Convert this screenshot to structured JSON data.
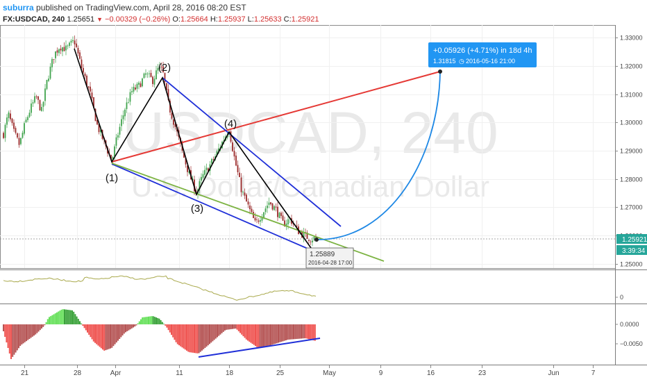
{
  "header": {
    "author": "suburra",
    "published": "published on TradingView.com, April 28, 2016 08:20 EST",
    "symbol": "FX:USDCAD, 240",
    "last": "1.25651",
    "change": "−0.00329 (−0.26%)",
    "o_label": "O:",
    "o": "1.25664",
    "h_label": "H:",
    "h": "1.25937",
    "l_label": "L:",
    "l": "1.25633",
    "c_label": "C:",
    "c": "1.25921"
  },
  "watermark": {
    "line1": "USDCAD, 240",
    "line2": "U.S. Dollar/Canadian Dollar"
  },
  "colors": {
    "up": "#3fa34d",
    "down": "#9b2a2a",
    "red_line": "#e53935",
    "blue_line": "#1f2fd8",
    "green_line": "#7cb342",
    "arc": "#1e88e5",
    "price_tag": "#26a69a",
    "osc": "#a8a84a",
    "hist_pos": "#66e05a",
    "hist_neg": "#ef5350"
  },
  "chart_data": {
    "type": "candlestick",
    "y_ticks": [
      "1.33000",
      "1.32000",
      "1.31000",
      "1.30000",
      "1.29000",
      "1.28000",
      "1.27000",
      "1.26000",
      "1.25000"
    ],
    "ylim": [
      1.2485,
      1.3345
    ],
    "x_ticks": [
      "21",
      "28",
      "Apr",
      "11",
      "18",
      "25",
      "May",
      "9",
      "16",
      "23",
      "Jun",
      "7"
    ],
    "current_price": "1.25921",
    "countdown": "3:39:34",
    "waves": [
      {
        "label": "(1)",
        "time": "2016-03-31 00:00",
        "price": 1.2862
      },
      {
        "label": "(2)",
        "time": "2016-04-08 12:00",
        "price": 1.3185
      },
      {
        "label": "(3)",
        "time": "2016-04-14 20:00",
        "price": 1.2752
      },
      {
        "label": "(4)",
        "time": "2016-04-18 12:00",
        "price": 1.2978
      }
    ],
    "low_marker": {
      "price": "1.25889",
      "time": "2016-04-28 17:00"
    },
    "target": {
      "change": "+0.05926 (+4.71%) in 18d 4h",
      "price": "1.31815",
      "time": "2016-05-16  21:00"
    },
    "oscillator": {
      "y_ticks": [
        "0"
      ]
    },
    "histogram": {
      "y_ticks": [
        "0.0000",
        "−0.0050"
      ]
    }
  }
}
